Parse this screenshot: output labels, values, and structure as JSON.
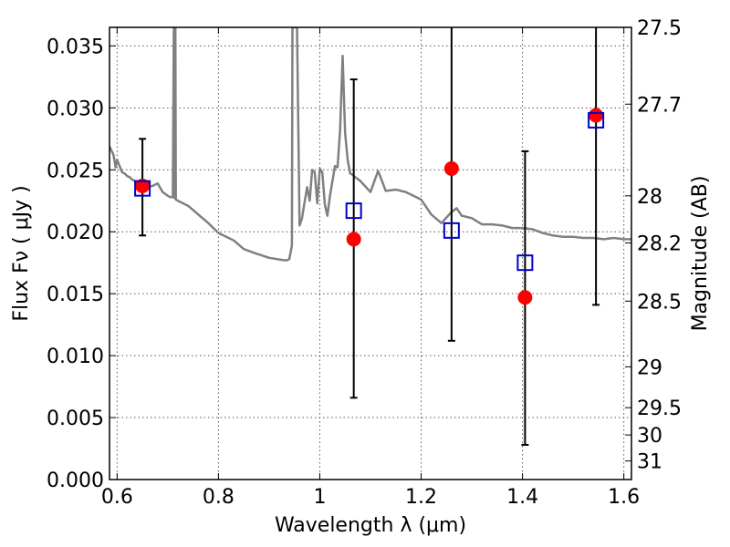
{
  "chart_data": {
    "type": "scatter",
    "xlabel": "Wavelength  λ (μm)",
    "ylabel_left": "Flux  Fν ( μJy )",
    "ylabel_right": "Magnitude (AB)",
    "xlim": [
      0.585,
      1.615
    ],
    "ylim": [
      0.0,
      0.0365
    ],
    "grid": true,
    "x_ticks": [
      {
        "value": 0.6,
        "label": "0.6"
      },
      {
        "value": 0.8,
        "label": "0.8"
      },
      {
        "value": 1.0,
        "label": "1"
      },
      {
        "value": 1.2,
        "label": "1.2"
      },
      {
        "value": 1.4,
        "label": "1.4"
      },
      {
        "value": 1.6,
        "label": "1.6"
      }
    ],
    "y_ticks": [
      {
        "value": 0.0,
        "label": "0.000"
      },
      {
        "value": 0.005,
        "label": "0.005"
      },
      {
        "value": 0.01,
        "label": "0.010"
      },
      {
        "value": 0.015,
        "label": "0.015"
      },
      {
        "value": 0.02,
        "label": "0.020"
      },
      {
        "value": 0.025,
        "label": "0.025"
      },
      {
        "value": 0.03,
        "label": "0.030"
      },
      {
        "value": 0.035,
        "label": "0.035"
      }
    ],
    "right_ticks": [
      {
        "flux": 0.0365,
        "label": "27.5"
      },
      {
        "flux": 0.0303,
        "label": "27.7"
      },
      {
        "flux": 0.0229,
        "label": "28"
      },
      {
        "flux": 0.0191,
        "label": "28.2"
      },
      {
        "flux": 0.0144,
        "label": "28.5"
      },
      {
        "flux": 0.0091,
        "label": "29"
      },
      {
        "flux": 0.0058,
        "label": "29.5"
      },
      {
        "flux": 0.0036,
        "label": "30"
      },
      {
        "flux": 0.0015,
        "label": "31"
      }
    ],
    "series": [
      {
        "role": "model-spectrum",
        "color": "#808080",
        "x": [
          0.585,
          0.593,
          0.597,
          0.6,
          0.603,
          0.606,
          0.61,
          0.615,
          0.62,
          0.625,
          0.63,
          0.635,
          0.64,
          0.65,
          0.66,
          0.67,
          0.68,
          0.69,
          0.7,
          0.705,
          0.71,
          0.712,
          0.713,
          0.7135,
          0.714,
          0.715,
          0.716,
          0.72,
          0.74,
          0.76,
          0.78,
          0.8,
          0.83,
          0.85,
          0.87,
          0.9,
          0.93,
          0.935,
          0.94,
          0.945,
          0.946,
          0.947,
          0.948,
          0.949,
          0.95,
          0.955,
          0.96,
          0.965,
          0.97,
          0.975,
          0.98,
          0.985,
          0.99,
          0.995,
          1.0,
          1.005,
          1.01,
          1.015,
          1.02,
          1.03,
          1.035,
          1.04,
          1.045,
          1.05,
          1.055,
          1.06,
          1.065,
          1.07,
          1.08,
          1.1,
          1.115,
          1.12,
          1.13,
          1.15,
          1.17,
          1.2,
          1.22,
          1.24,
          1.26,
          1.27,
          1.28,
          1.3,
          1.32,
          1.34,
          1.36,
          1.38,
          1.4,
          1.42,
          1.44,
          1.46,
          1.48,
          1.5,
          1.52,
          1.54,
          1.56,
          1.58,
          1.6,
          1.615
        ],
        "y": [
          0.0269,
          0.0262,
          0.0252,
          0.0258,
          0.0255,
          0.0252,
          0.0248,
          0.0247,
          0.0245,
          0.0244,
          0.0242,
          0.0241,
          0.0239,
          0.0236,
          0.0236,
          0.0237,
          0.0239,
          0.0232,
          0.0229,
          0.0228,
          0.0228,
          0.0365,
          0.0365,
          0.0227,
          0.0365,
          0.0365,
          0.0226,
          0.0225,
          0.0221,
          0.0214,
          0.0207,
          0.0199,
          0.0193,
          0.0186,
          0.0183,
          0.0179,
          0.0177,
          0.0177,
          0.0178,
          0.0189,
          0.0365,
          0.0365,
          0.0365,
          0.0365,
          0.0365,
          0.0365,
          0.0205,
          0.0211,
          0.0224,
          0.0236,
          0.0225,
          0.025,
          0.0248,
          0.0223,
          0.0251,
          0.0248,
          0.0222,
          0.0213,
          0.0229,
          0.0253,
          0.0252,
          0.0282,
          0.0342,
          0.028,
          0.0258,
          0.0247,
          0.0246,
          0.0244,
          0.0241,
          0.0232,
          0.0249,
          0.0244,
          0.0233,
          0.0234,
          0.0232,
          0.0226,
          0.0214,
          0.0207,
          0.0216,
          0.0219,
          0.0213,
          0.0211,
          0.0206,
          0.0206,
          0.0205,
          0.0203,
          0.0203,
          0.0202,
          0.0199,
          0.0197,
          0.0196,
          0.0196,
          0.0195,
          0.0195,
          0.0194,
          0.0195,
          0.0194,
          0.0194
        ]
      },
      {
        "role": "observed-flux",
        "color": "#ff0000",
        "x": [
          0.65,
          1.067,
          1.26,
          1.405,
          1.545
        ],
        "y": [
          0.0237,
          0.0194,
          0.0251,
          0.0147,
          0.0294
        ],
        "yerr_low": [
          0.0197,
          0.0066,
          0.0112,
          0.0028,
          0.0141
        ],
        "yerr_high": [
          0.0275,
          0.0323,
          0.0365,
          0.0265,
          0.0365
        ]
      },
      {
        "role": "model-synthetic-flux",
        "color": "#0000cc",
        "marker": "square-open",
        "x": [
          0.65,
          1.067,
          1.26,
          1.405,
          1.545
        ],
        "y": [
          0.0235,
          0.0217,
          0.0201,
          0.0175,
          0.029
        ]
      }
    ],
    "colors": {
      "spectrum": "#808080",
      "observed": "#ff0000",
      "synthetic": "#0000cc",
      "errorbar": "#000000",
      "grid": "#555555"
    }
  }
}
